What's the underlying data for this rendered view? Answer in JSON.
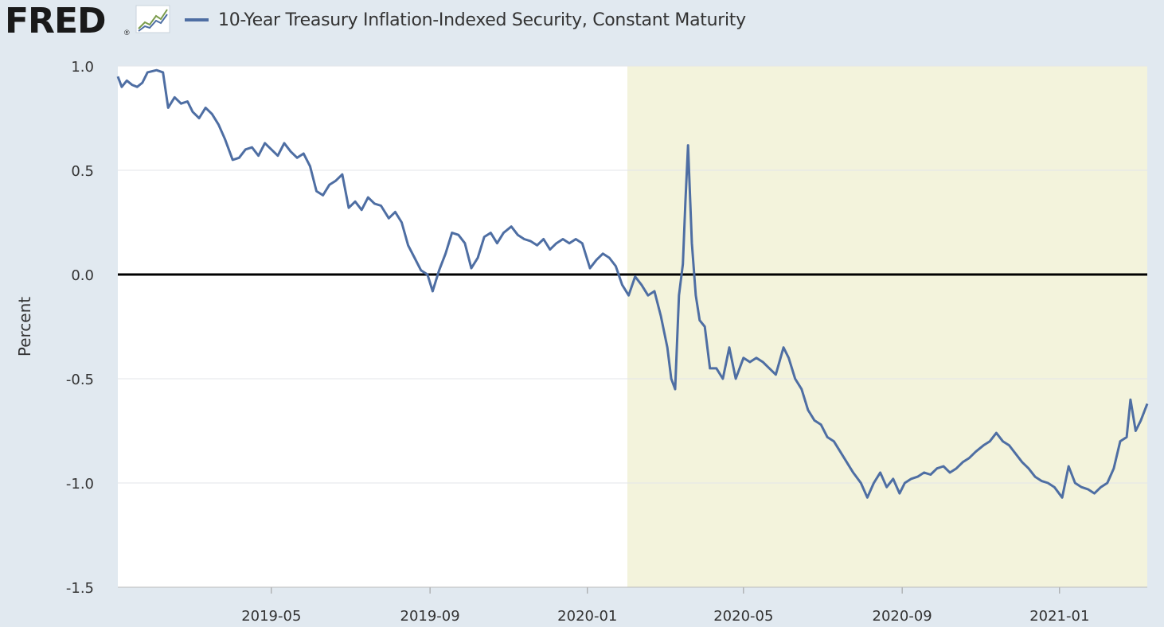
{
  "header": {
    "logo_text": "FRED",
    "logo_reg": "®",
    "logo_icon": "line-chart-icon"
  },
  "colors": {
    "background": "#e1e9f0",
    "plot_bg": "#ffffff",
    "recession_shade": "#f3f3dc",
    "series_line": "#4e6ea3",
    "zero_line": "#000000",
    "grid": "#e3e6ea"
  },
  "chart_data": {
    "type": "line",
    "title": "",
    "xlabel": "",
    "ylabel": "Percent",
    "ylim": [
      -1.5,
      1.0
    ],
    "xlim": [
      "2019-01-02",
      "2021-03-10"
    ],
    "yticks": [
      "1.0",
      "0.5",
      "0.0",
      "-0.5",
      "-1.0",
      "-1.5"
    ],
    "xticks": [
      "2019-05",
      "2019-09",
      "2020-01",
      "2020-05",
      "2020-09",
      "2021-01"
    ],
    "grid": true,
    "legend_position": "top-left",
    "shaded_regions": [
      {
        "start": "2020-02-01",
        "end": "2021-03-10",
        "label": ""
      }
    ],
    "reference_lines": [
      {
        "y": 0.0
      }
    ],
    "series": [
      {
        "name": "10-Year Treasury Inflation-Indexed Security, Constant Maturity",
        "points": [
          [
            "2019-01-02",
            0.95
          ],
          [
            "2019-01-05",
            0.9
          ],
          [
            "2019-01-09",
            0.93
          ],
          [
            "2019-01-13",
            0.91
          ],
          [
            "2019-01-17",
            0.9
          ],
          [
            "2019-01-21",
            0.92
          ],
          [
            "2019-01-25",
            0.97
          ],
          [
            "2019-02-01",
            0.98
          ],
          [
            "2019-02-06",
            0.97
          ],
          [
            "2019-02-10",
            0.8
          ],
          [
            "2019-02-15",
            0.85
          ],
          [
            "2019-02-20",
            0.82
          ],
          [
            "2019-02-25",
            0.83
          ],
          [
            "2019-03-01",
            0.78
          ],
          [
            "2019-03-06",
            0.75
          ],
          [
            "2019-03-11",
            0.8
          ],
          [
            "2019-03-16",
            0.77
          ],
          [
            "2019-03-21",
            0.72
          ],
          [
            "2019-03-26",
            0.65
          ],
          [
            "2019-04-01",
            0.55
          ],
          [
            "2019-04-06",
            0.56
          ],
          [
            "2019-04-11",
            0.6
          ],
          [
            "2019-04-16",
            0.61
          ],
          [
            "2019-04-21",
            0.57
          ],
          [
            "2019-04-26",
            0.63
          ],
          [
            "2019-05-01",
            0.6
          ],
          [
            "2019-05-06",
            0.57
          ],
          [
            "2019-05-11",
            0.63
          ],
          [
            "2019-05-16",
            0.59
          ],
          [
            "2019-05-21",
            0.56
          ],
          [
            "2019-05-26",
            0.58
          ],
          [
            "2019-05-31",
            0.52
          ],
          [
            "2019-06-05",
            0.4
          ],
          [
            "2019-06-10",
            0.38
          ],
          [
            "2019-06-15",
            0.43
          ],
          [
            "2019-06-20",
            0.45
          ],
          [
            "2019-06-25",
            0.48
          ],
          [
            "2019-06-30",
            0.32
          ],
          [
            "2019-07-05",
            0.35
          ],
          [
            "2019-07-10",
            0.31
          ],
          [
            "2019-07-15",
            0.37
          ],
          [
            "2019-07-20",
            0.34
          ],
          [
            "2019-07-25",
            0.33
          ],
          [
            "2019-07-31",
            0.27
          ],
          [
            "2019-08-05",
            0.3
          ],
          [
            "2019-08-10",
            0.25
          ],
          [
            "2019-08-15",
            0.14
          ],
          [
            "2019-08-20",
            0.08
          ],
          [
            "2019-08-25",
            0.02
          ],
          [
            "2019-08-30",
            0.0
          ],
          [
            "2019-09-03",
            -0.08
          ],
          [
            "2019-09-08",
            0.02
          ],
          [
            "2019-09-13",
            0.1
          ],
          [
            "2019-09-18",
            0.2
          ],
          [
            "2019-09-23",
            0.19
          ],
          [
            "2019-09-28",
            0.15
          ],
          [
            "2019-10-03",
            0.03
          ],
          [
            "2019-10-08",
            0.08
          ],
          [
            "2019-10-13",
            0.18
          ],
          [
            "2019-10-18",
            0.2
          ],
          [
            "2019-10-23",
            0.15
          ],
          [
            "2019-10-28",
            0.2
          ],
          [
            "2019-11-03",
            0.23
          ],
          [
            "2019-11-08",
            0.19
          ],
          [
            "2019-11-13",
            0.17
          ],
          [
            "2019-11-18",
            0.16
          ],
          [
            "2019-11-23",
            0.14
          ],
          [
            "2019-11-28",
            0.17
          ],
          [
            "2019-12-03",
            0.12
          ],
          [
            "2019-12-08",
            0.15
          ],
          [
            "2019-12-13",
            0.17
          ],
          [
            "2019-12-18",
            0.15
          ],
          [
            "2019-12-23",
            0.17
          ],
          [
            "2019-12-28",
            0.15
          ],
          [
            "2020-01-03",
            0.03
          ],
          [
            "2020-01-08",
            0.07
          ],
          [
            "2020-01-13",
            0.1
          ],
          [
            "2020-01-18",
            0.08
          ],
          [
            "2020-01-23",
            0.04
          ],
          [
            "2020-01-28",
            -0.05
          ],
          [
            "2020-02-02",
            -0.1
          ],
          [
            "2020-02-07",
            -0.01
          ],
          [
            "2020-02-12",
            -0.05
          ],
          [
            "2020-02-17",
            -0.1
          ],
          [
            "2020-02-22",
            -0.08
          ],
          [
            "2020-02-27",
            -0.2
          ],
          [
            "2020-03-03",
            -0.35
          ],
          [
            "2020-03-06",
            -0.5
          ],
          [
            "2020-03-09",
            -0.55
          ],
          [
            "2020-03-12",
            -0.1
          ],
          [
            "2020-03-15",
            0.05
          ],
          [
            "2020-03-17",
            0.35
          ],
          [
            "2020-03-19",
            0.62
          ],
          [
            "2020-03-22",
            0.15
          ],
          [
            "2020-03-25",
            -0.1
          ],
          [
            "2020-03-28",
            -0.22
          ],
          [
            "2020-04-01",
            -0.25
          ],
          [
            "2020-04-05",
            -0.45
          ],
          [
            "2020-04-10",
            -0.45
          ],
          [
            "2020-04-15",
            -0.5
          ],
          [
            "2020-04-20",
            -0.35
          ],
          [
            "2020-04-25",
            -0.5
          ],
          [
            "2020-05-01",
            -0.4
          ],
          [
            "2020-05-06",
            -0.42
          ],
          [
            "2020-05-11",
            -0.4
          ],
          [
            "2020-05-16",
            -0.42
          ],
          [
            "2020-05-21",
            -0.45
          ],
          [
            "2020-05-26",
            -0.48
          ],
          [
            "2020-06-01",
            -0.35
          ],
          [
            "2020-06-05",
            -0.4
          ],
          [
            "2020-06-10",
            -0.5
          ],
          [
            "2020-06-15",
            -0.55
          ],
          [
            "2020-06-20",
            -0.65
          ],
          [
            "2020-06-25",
            -0.7
          ],
          [
            "2020-06-30",
            -0.72
          ],
          [
            "2020-07-05",
            -0.78
          ],
          [
            "2020-07-10",
            -0.8
          ],
          [
            "2020-07-15",
            -0.85
          ],
          [
            "2020-07-20",
            -0.9
          ],
          [
            "2020-07-25",
            -0.95
          ],
          [
            "2020-07-31",
            -1.0
          ],
          [
            "2020-08-05",
            -1.07
          ],
          [
            "2020-08-10",
            -1.0
          ],
          [
            "2020-08-15",
            -0.95
          ],
          [
            "2020-08-20",
            -1.02
          ],
          [
            "2020-08-25",
            -0.98
          ],
          [
            "2020-08-30",
            -1.05
          ],
          [
            "2020-09-03",
            -1.0
          ],
          [
            "2020-09-08",
            -0.98
          ],
          [
            "2020-09-13",
            -0.97
          ],
          [
            "2020-09-18",
            -0.95
          ],
          [
            "2020-09-23",
            -0.96
          ],
          [
            "2020-09-28",
            -0.93
          ],
          [
            "2020-10-03",
            -0.92
          ],
          [
            "2020-10-08",
            -0.95
          ],
          [
            "2020-10-13",
            -0.93
          ],
          [
            "2020-10-18",
            -0.9
          ],
          [
            "2020-10-23",
            -0.88
          ],
          [
            "2020-10-28",
            -0.85
          ],
          [
            "2020-11-03",
            -0.82
          ],
          [
            "2020-11-08",
            -0.8
          ],
          [
            "2020-11-13",
            -0.76
          ],
          [
            "2020-11-18",
            -0.8
          ],
          [
            "2020-11-23",
            -0.82
          ],
          [
            "2020-11-28",
            -0.86
          ],
          [
            "2020-12-03",
            -0.9
          ],
          [
            "2020-12-08",
            -0.93
          ],
          [
            "2020-12-13",
            -0.97
          ],
          [
            "2020-12-18",
            -0.99
          ],
          [
            "2020-12-23",
            -1.0
          ],
          [
            "2020-12-28",
            -1.02
          ],
          [
            "2021-01-03",
            -1.07
          ],
          [
            "2021-01-08",
            -0.92
          ],
          [
            "2021-01-13",
            -1.0
          ],
          [
            "2021-01-18",
            -1.02
          ],
          [
            "2021-01-23",
            -1.03
          ],
          [
            "2021-01-28",
            -1.05
          ],
          [
            "2021-02-02",
            -1.02
          ],
          [
            "2021-02-07",
            -1.0
          ],
          [
            "2021-02-12",
            -0.93
          ],
          [
            "2021-02-17",
            -0.8
          ],
          [
            "2021-02-22",
            -0.78
          ],
          [
            "2021-02-25",
            -0.6
          ],
          [
            "2021-03-01",
            -0.75
          ],
          [
            "2021-03-05",
            -0.7
          ],
          [
            "2021-03-10",
            -0.62
          ]
        ]
      }
    ]
  }
}
